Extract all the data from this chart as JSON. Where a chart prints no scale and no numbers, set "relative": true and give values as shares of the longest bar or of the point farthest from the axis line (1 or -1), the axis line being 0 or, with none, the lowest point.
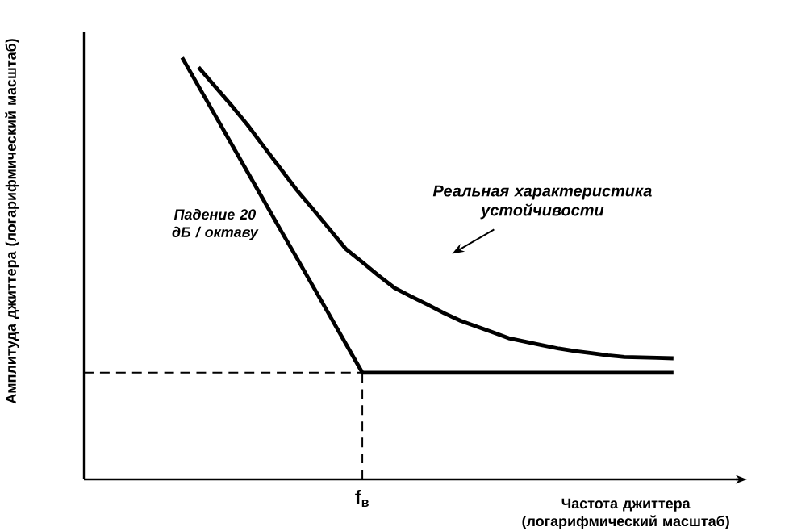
{
  "chart_data": {
    "type": "line",
    "relative": true,
    "xlabel": "Частота джиттера (логарифмический масштаб)",
    "ylabel": "Амплитуда джиттера (логарифмический масштаб)",
    "categories": [
      null,
      null,
      null,
      null,
      null,
      null,
      null,
      null,
      null,
      null,
      null,
      null,
      null,
      null,
      null,
      null,
      null,
      null,
      null,
      null,
      null,
      null,
      null,
      null,
      null,
      null,
      null,
      null,
      null,
      null,
      null,
      null,
      null,
      null,
      null,
      null,
      null,
      null,
      null,
      null,
      null
    ],
    "grid": false,
    "series": [
      {
        "color": "#000000",
        "values": [
          null,
          null,
          null,
          null,
          null,
          null,
          1,
          0.932,
          0.864,
          0.796,
          0.728,
          0.66,
          0.592,
          0.525,
          0.457,
          0.389,
          0.321,
          0.253,
          0.253,
          0.253,
          0.253,
          0.253,
          0.253,
          0.253,
          0.253,
          0.253,
          0.253,
          0.253,
          0.253,
          0.253,
          0.253,
          0.253,
          0.253,
          0.253,
          0.253,
          0.253,
          0.253,
          null,
          null,
          null,
          null
        ]
      },
      {
        "color": "#000000",
        "values": [
          null,
          null,
          null,
          null,
          null,
          null,
          null,
          0.977,
          0.932,
          0.887,
          0.84,
          0.788,
          0.737,
          0.686,
          0.64,
          0.593,
          0.546,
          0.515,
          0.483,
          0.453,
          0.433,
          0.414,
          0.394,
          0.376,
          0.362,
          0.348,
          0.334,
          0.326,
          0.318,
          0.31,
          0.304,
          0.299,
          0.294,
          0.29,
          0.289,
          0.288,
          0.287,
          null,
          null,
          null,
          null
        ]
      }
    ],
    "ref_lines": [
      {
        "axis": "y",
        "value": 0.253,
        "line_style": "dashed",
        "color": "#000000"
      }
    ],
    "annotations": [
      "Реальная характеристика устойчивости",
      "Падение 20 дБ / октаву",
      "f$_{в}$"
    ]
  }
}
